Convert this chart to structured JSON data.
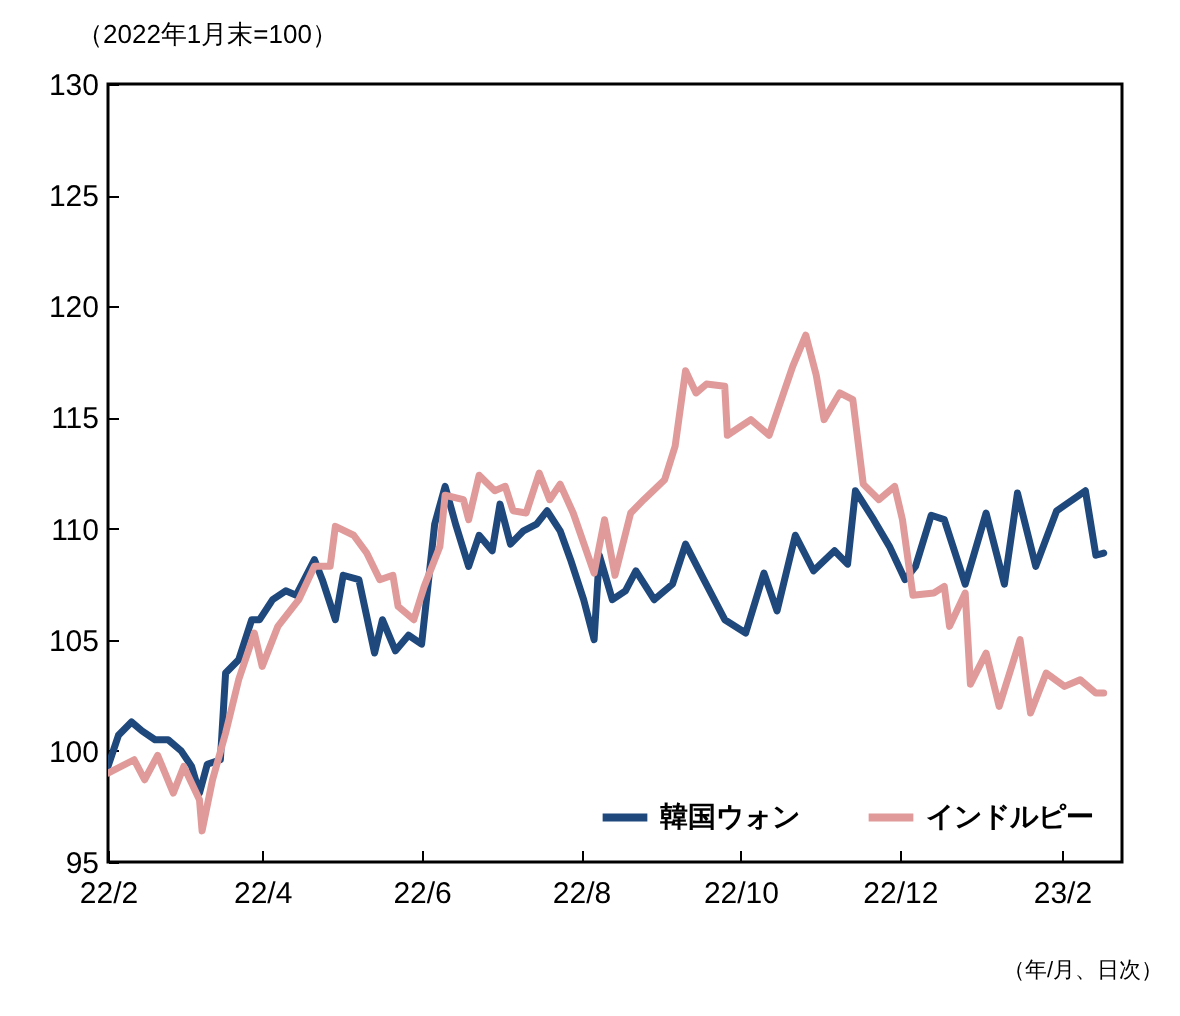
{
  "chart_data": {
    "type": "line",
    "ylabel": "（2022年1月末=100）",
    "xlabel": "（年/月、日次）",
    "xlim": [
      "2022-02-01",
      "2023-02-24"
    ],
    "ylim": [
      95,
      130
    ],
    "yticks": [
      95,
      100,
      105,
      110,
      115,
      120,
      125,
      130
    ],
    "xticks": [
      {
        "value": "2022-02-01",
        "label": "22/2"
      },
      {
        "value": "2022-04-01",
        "label": "22/4"
      },
      {
        "value": "2022-06-01",
        "label": "22/6"
      },
      {
        "value": "2022-08-01",
        "label": "22/8"
      },
      {
        "value": "2022-10-01",
        "label": "22/10"
      },
      {
        "value": "2022-12-01",
        "label": "22/12"
      },
      {
        "value": "2023-02-01",
        "label": "23/2"
      }
    ],
    "legend": "bottom right",
    "grid": false,
    "line_style": "solid",
    "series": [
      {
        "name": "韓国ウォン",
        "color": "#1f497d",
        "x": [
          "2022-02-01",
          "2022-02-05",
          "2022-02-10",
          "2022-02-14",
          "2022-02-19",
          "2022-02-24",
          "2022-03-01",
          "2022-03-05",
          "2022-03-08",
          "2022-03-11",
          "2022-03-16",
          "2022-03-18",
          "2022-03-23",
          "2022-03-28",
          "2022-03-31",
          "2022-04-05",
          "2022-04-10",
          "2022-04-14",
          "2022-04-21",
          "2022-04-24",
          "2022-04-29",
          "2022-05-02",
          "2022-05-08",
          "2022-05-14",
          "2022-05-17",
          "2022-05-22",
          "2022-05-27",
          "2022-06-01",
          "2022-06-06",
          "2022-06-10",
          "2022-06-14",
          "2022-06-19",
          "2022-06-23",
          "2022-06-28",
          "2022-07-01",
          "2022-07-05",
          "2022-07-10",
          "2022-07-15",
          "2022-07-19",
          "2022-07-24",
          "2022-07-28",
          "2022-08-02",
          "2022-08-06",
          "2022-08-08",
          "2022-08-13",
          "2022-08-18",
          "2022-08-22",
          "2022-08-29",
          "2022-09-05",
          "2022-09-10",
          "2022-09-17",
          "2022-09-25",
          "2022-10-03",
          "2022-10-10",
          "2022-10-15",
          "2022-10-22",
          "2022-10-29",
          "2022-11-06",
          "2022-11-11",
          "2022-11-14",
          "2022-11-21",
          "2022-11-27",
          "2022-12-03",
          "2022-12-07",
          "2022-12-13",
          "2022-12-18",
          "2022-12-26",
          "2023-01-03",
          "2023-01-10",
          "2023-01-15",
          "2023-01-22",
          "2023-01-30",
          "2023-02-10",
          "2023-02-14",
          "2023-02-17"
        ],
        "values": [
          99.3,
          100.7,
          101.3,
          100.9,
          100.5,
          100.5,
          100.0,
          99.3,
          98.1,
          99.4,
          99.6,
          103.5,
          104.1,
          105.9,
          105.9,
          106.8,
          107.2,
          107.0,
          108.6,
          107.7,
          105.9,
          107.9,
          107.7,
          104.4,
          105.9,
          104.5,
          105.2,
          104.8,
          110.2,
          111.9,
          110.2,
          108.3,
          109.7,
          109.0,
          111.1,
          109.3,
          109.9,
          110.2,
          110.8,
          109.9,
          108.6,
          106.8,
          105.0,
          108.8,
          106.8,
          107.2,
          108.1,
          106.8,
          107.5,
          109.3,
          107.7,
          105.9,
          105.3,
          108.0,
          106.3,
          109.7,
          108.1,
          109.0,
          108.4,
          111.7,
          110.4,
          109.2,
          107.7,
          108.3,
          110.6,
          110.4,
          107.5,
          110.7,
          107.5,
          111.6,
          108.3,
          110.8,
          111.7,
          108.8,
          108.9
        ]
      },
      {
        "name": "インドルピー",
        "color": "#e09a9a",
        "x": [
          "2022-02-01",
          "2022-02-11",
          "2022-02-15",
          "2022-02-20",
          "2022-02-26",
          "2022-03-02",
          "2022-03-08",
          "2022-03-09",
          "2022-03-13",
          "2022-03-18",
          "2022-03-23",
          "2022-03-29",
          "2022-04-01",
          "2022-04-07",
          "2022-04-15",
          "2022-04-21",
          "2022-04-27",
          "2022-04-29",
          "2022-05-06",
          "2022-05-11",
          "2022-05-16",
          "2022-05-21",
          "2022-05-23",
          "2022-05-29",
          "2022-06-02",
          "2022-06-08",
          "2022-06-10",
          "2022-06-17",
          "2022-06-19",
          "2022-06-23",
          "2022-06-29",
          "2022-07-03",
          "2022-07-06",
          "2022-07-11",
          "2022-07-16",
          "2022-07-20",
          "2022-07-24",
          "2022-07-29",
          "2022-08-06",
          "2022-08-10",
          "2022-08-14",
          "2022-08-20",
          "2022-08-25",
          "2022-09-02",
          "2022-09-06",
          "2022-09-10",
          "2022-09-14",
          "2022-09-18",
          "2022-09-25",
          "2022-09-26",
          "2022-10-05",
          "2022-10-12",
          "2022-10-21",
          "2022-10-26",
          "2022-10-30",
          "2022-11-02",
          "2022-11-08",
          "2022-11-13",
          "2022-11-17",
          "2022-11-23",
          "2022-11-29",
          "2022-12-02",
          "2022-12-06",
          "2022-12-14",
          "2022-12-18",
          "2022-12-20",
          "2022-12-26",
          "2022-12-28",
          "2023-01-03",
          "2023-01-08",
          "2023-01-16",
          "2023-01-20",
          "2023-01-26",
          "2023-02-02",
          "2023-02-08",
          "2023-02-14",
          "2023-02-17"
        ],
        "values": [
          99.0,
          99.6,
          98.7,
          99.8,
          98.1,
          99.3,
          97.8,
          96.4,
          98.7,
          100.8,
          103.2,
          105.3,
          103.8,
          105.6,
          106.8,
          108.3,
          108.3,
          110.1,
          109.7,
          108.9,
          107.7,
          107.9,
          106.5,
          105.9,
          107.4,
          109.2,
          111.5,
          111.3,
          110.4,
          112.4,
          111.7,
          111.9,
          110.8,
          110.7,
          112.5,
          111.3,
          112.0,
          110.7,
          108.0,
          110.4,
          107.9,
          110.7,
          111.3,
          112.2,
          113.7,
          117.1,
          116.1,
          116.5,
          116.4,
          114.2,
          114.9,
          114.2,
          117.3,
          118.7,
          116.9,
          114.9,
          116.1,
          115.8,
          112.0,
          111.3,
          111.9,
          110.4,
          107.0,
          107.1,
          107.4,
          105.6,
          107.1,
          103.0,
          104.4,
          102.0,
          105.0,
          101.7,
          103.5,
          102.9,
          103.2,
          102.6,
          102.6
        ]
      }
    ]
  }
}
